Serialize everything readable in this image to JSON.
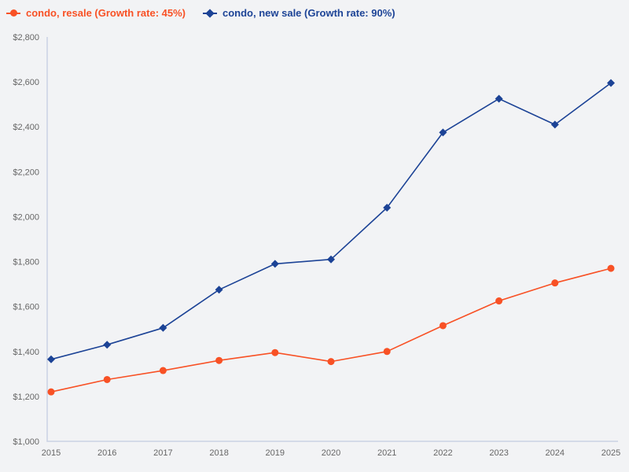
{
  "page": {
    "background_color": "#F2F3F5"
  },
  "chart_data": {
    "type": "line",
    "x": [
      2015,
      2016,
      2017,
      2018,
      2019,
      2020,
      2021,
      2022,
      2023,
      2024,
      2025
    ],
    "x_labels": [
      "2015",
      "2016",
      "2017",
      "2018",
      "2019",
      "2020",
      "2021",
      "2022",
      "2023",
      "2024",
      "2025"
    ],
    "series": [
      {
        "name": "condo, resale (Growth rate: 45%)",
        "color": "#F85125",
        "marker": "circle",
        "values": [
          1220,
          1275,
          1315,
          1360,
          1395,
          1355,
          1400,
          1515,
          1625,
          1705,
          1770
        ]
      },
      {
        "name": "condo, new sale (Growth rate: 90%)",
        "color": "#1C4396",
        "marker": "diamond",
        "values": [
          1365,
          1430,
          1505,
          1675,
          1790,
          1810,
          2040,
          2375,
          2525,
          2410,
          2595
        ]
      }
    ],
    "ylim": [
      1000,
      2800
    ],
    "y_ticks": [
      1000,
      1200,
      1400,
      1600,
      1800,
      2000,
      2200,
      2400,
      2600,
      2800
    ],
    "y_tick_labels": [
      "$1,000",
      "$1,200",
      "$1,400",
      "$1,600",
      "$1,800",
      "$2,000",
      "$2,200",
      "$2,400",
      "$2,600",
      "$2,800"
    ],
    "grid": false,
    "legend_position": "top-left",
    "colors": {
      "axis_line": "#C9D1E3",
      "tick_label": "#666666"
    }
  }
}
